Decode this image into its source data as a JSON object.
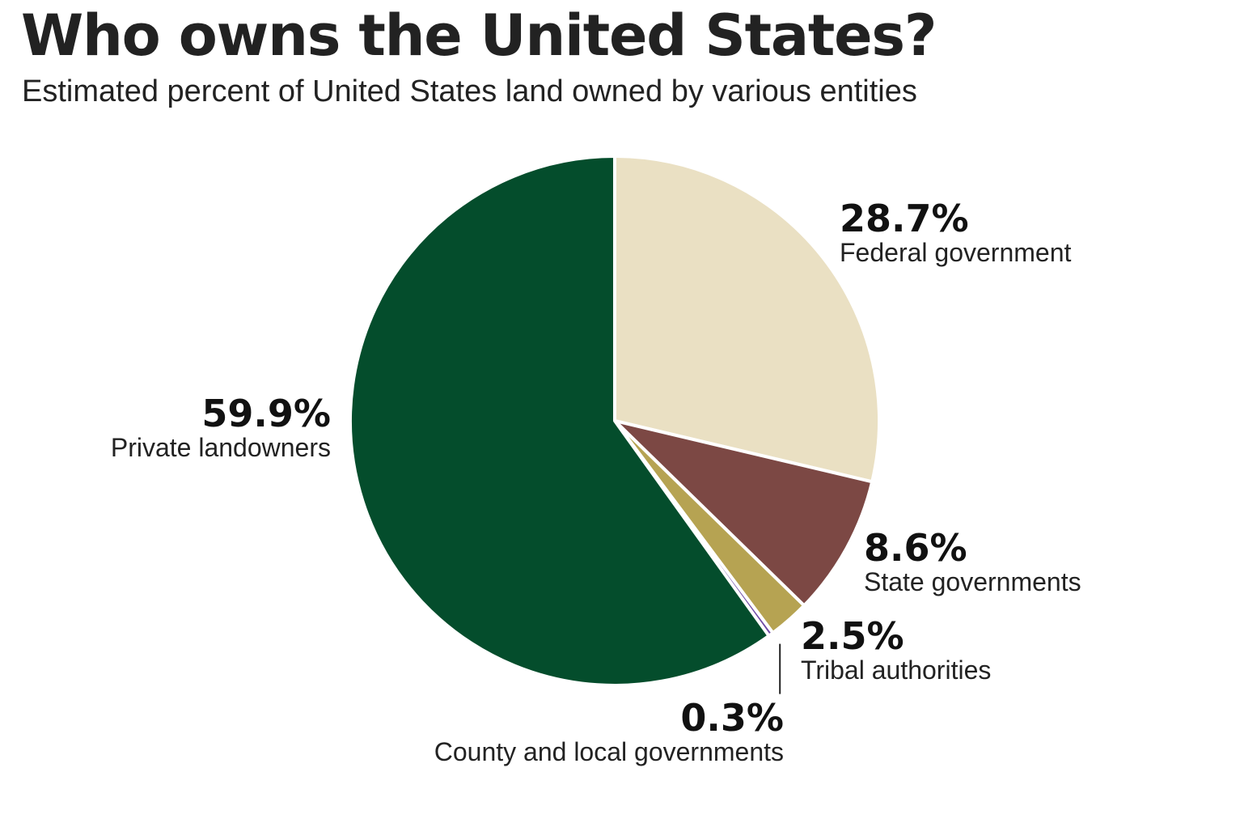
{
  "header": {
    "title": "Who owns the United States?",
    "subtitle": "Estimated percent of United States land owned by various entities"
  },
  "chart_data": {
    "type": "pie",
    "title": "Who owns the United States?",
    "subtitle": "Estimated percent of United States land owned by various entities",
    "slices": [
      {
        "name": "Federal government",
        "value": 28.7,
        "label": "28.7%",
        "color": "#eae0c3"
      },
      {
        "name": "State governments",
        "value": 8.6,
        "label": "8.6%",
        "color": "#7c4844"
      },
      {
        "name": "Tribal authorities",
        "value": 2.5,
        "label": "2.5%",
        "color": "#b6a352"
      },
      {
        "name": "County and local governments",
        "value": 0.3,
        "label": "0.3%",
        "color": "#6e4aa5"
      },
      {
        "name": "Private landowners",
        "value": 59.9,
        "label": "59.9%",
        "color": "#044d2c"
      }
    ],
    "start_angle": "12 o'clock",
    "direction": "clockwise",
    "legend": "none",
    "labels": "direct"
  }
}
